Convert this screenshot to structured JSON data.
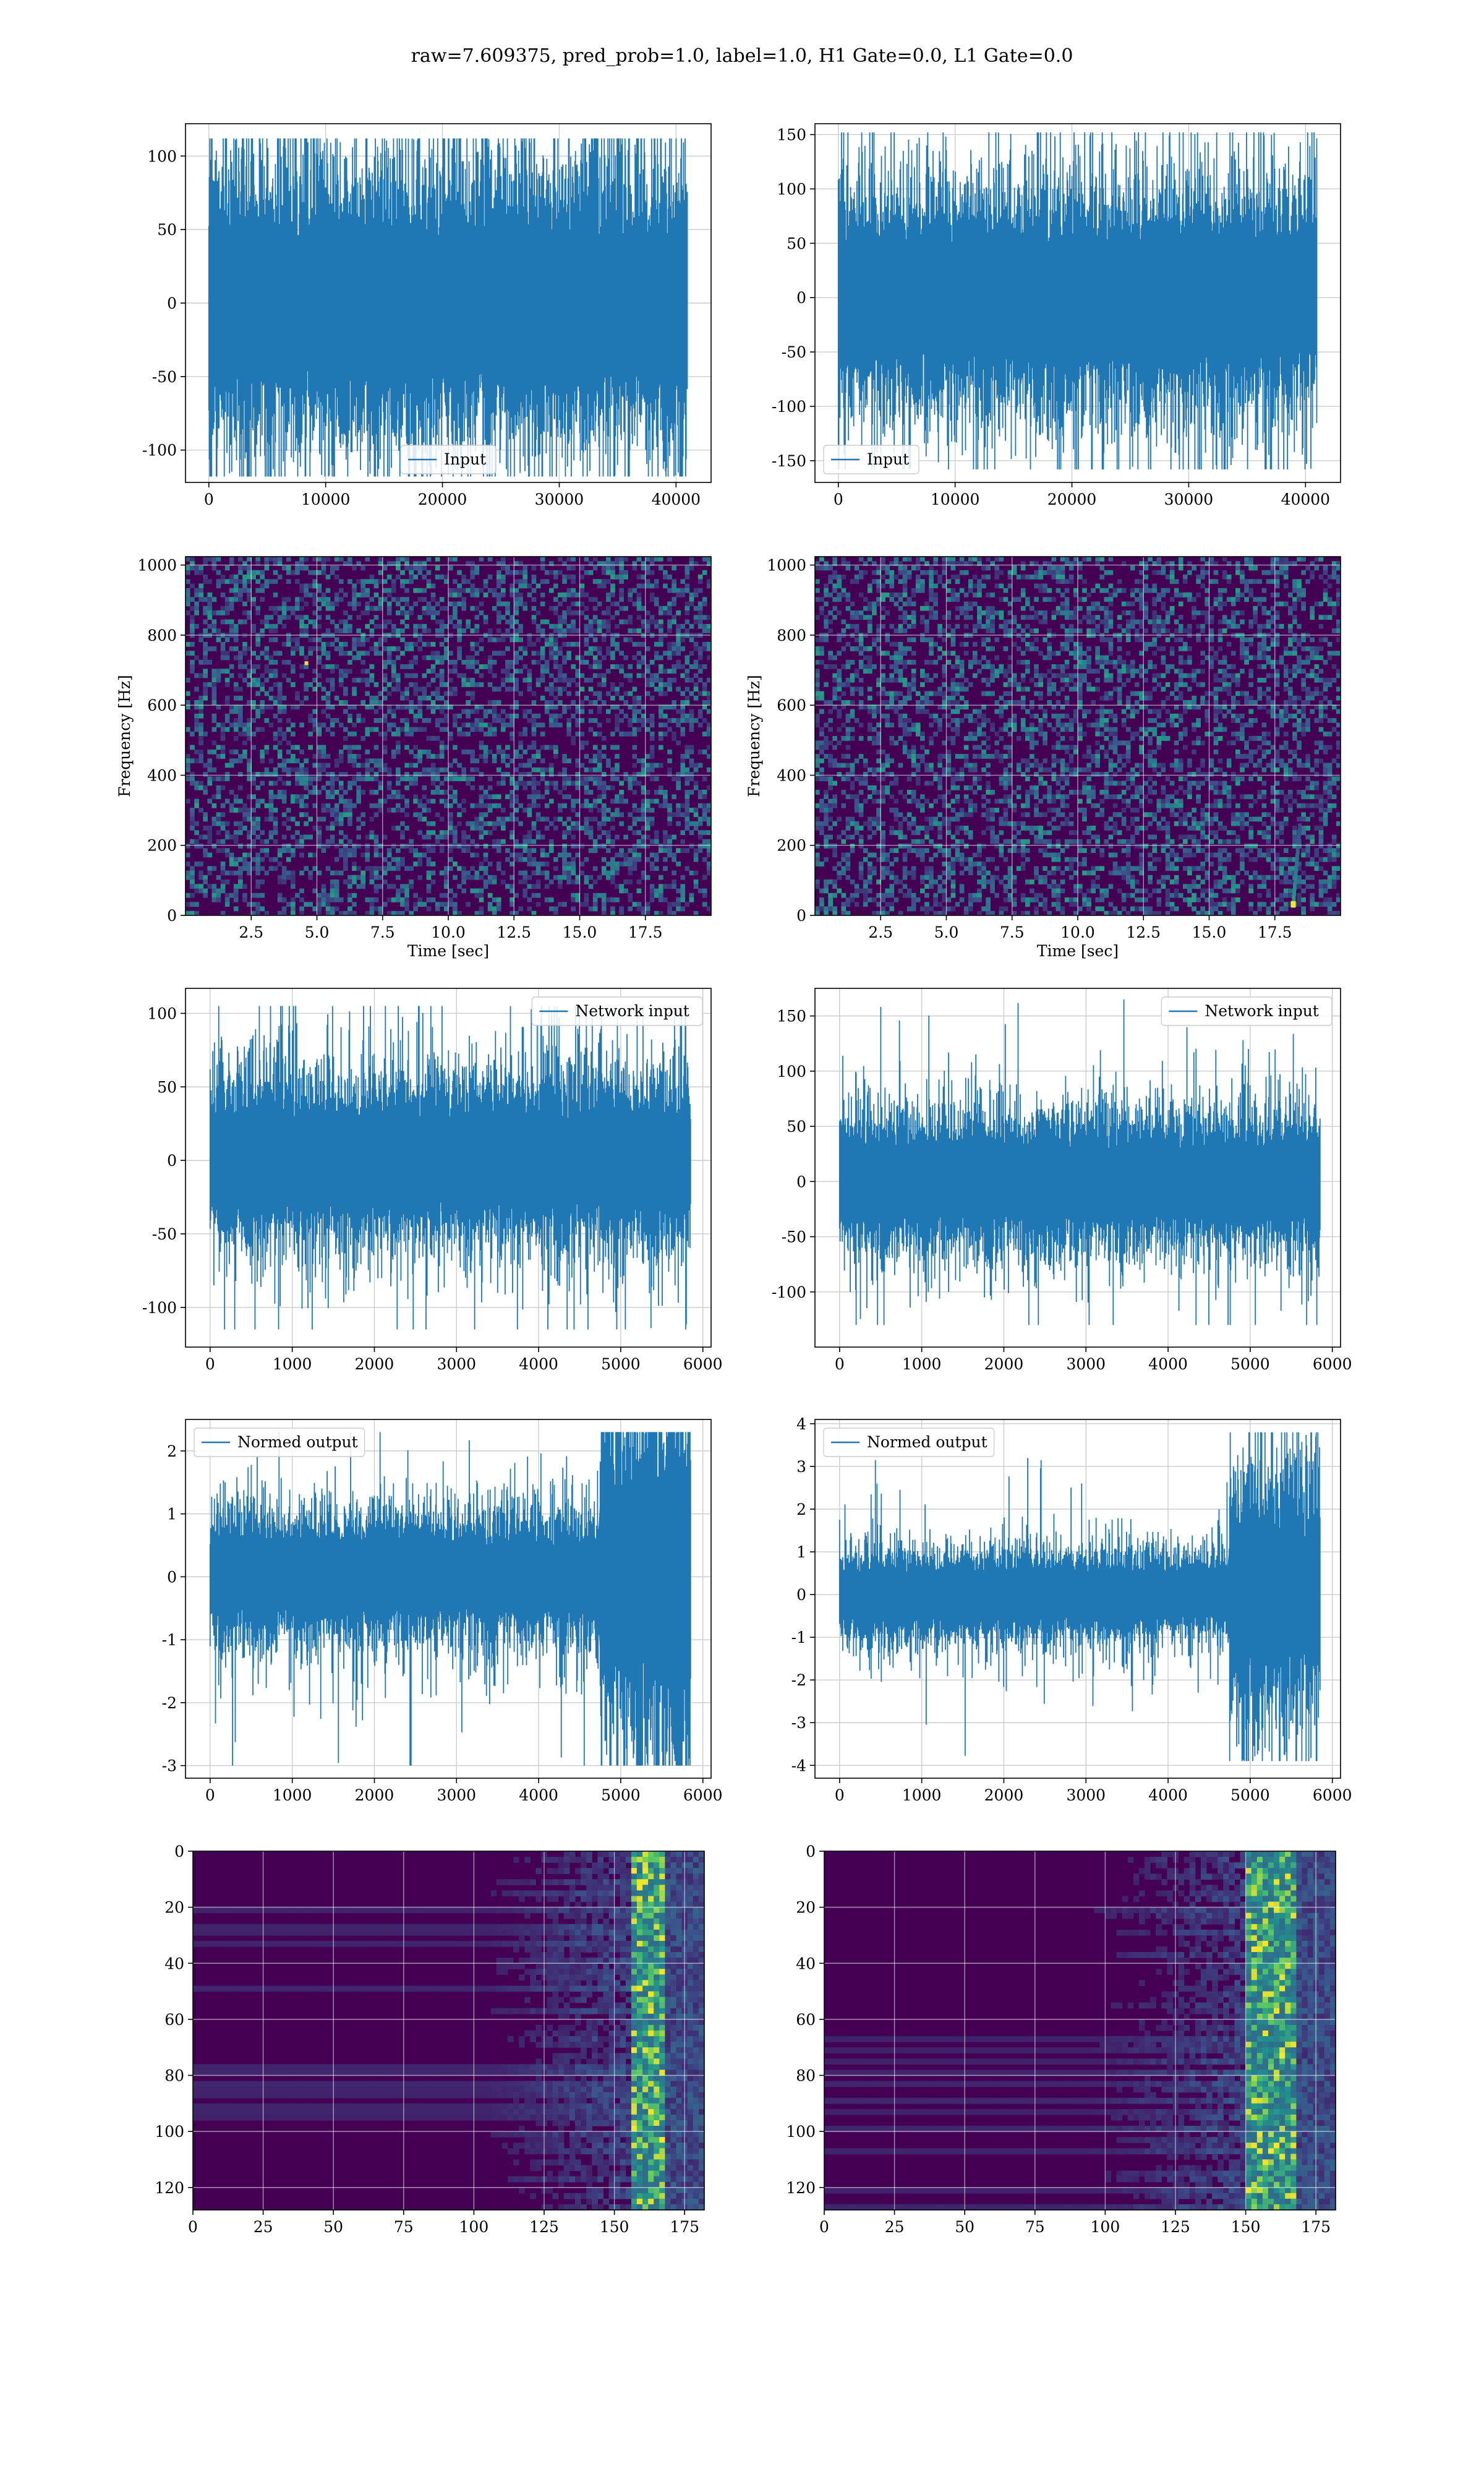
{
  "suptitle": "raw=7.609375, pred_prob=1.0, label=1.0, H1 Gate=0.0, L1 Gate=0.0",
  "colors": {
    "line": "#1f77b4",
    "grid": "#cccccc",
    "viridis_low": "#440154",
    "viridis_mid": "#21918c",
    "viridis_high": "#fde725"
  },
  "chart_data": [
    {
      "id": "input-h1",
      "type": "line",
      "legend": [
        "Input"
      ],
      "legend_loc": "lower center",
      "grid": true,
      "xlim": [
        -2000,
        43000
      ],
      "ylim": [
        -122,
        122
      ],
      "xticks": [
        0,
        10000,
        20000,
        30000,
        40000
      ],
      "yticks": [
        -100,
        -50,
        0,
        50,
        100
      ],
      "series": [
        {
          "name": "Input",
          "n_samples": 40960,
          "band_range": [
            -45,
            45
          ],
          "peak_range": [
            -118,
            112
          ]
        }
      ]
    },
    {
      "id": "input-l1",
      "type": "line",
      "legend": [
        "Input"
      ],
      "legend_loc": "lower left",
      "grid": true,
      "xlim": [
        -2000,
        43000
      ],
      "ylim": [
        -170,
        160
      ],
      "xticks": [
        0,
        10000,
        20000,
        30000,
        40000
      ],
      "yticks": [
        -150,
        -100,
        -50,
        0,
        50,
        100,
        150
      ],
      "series": [
        {
          "name": "Input",
          "n_samples": 40960,
          "band_range": [
            -50,
            50
          ],
          "peak_range": [
            -158,
            152
          ]
        }
      ]
    },
    {
      "id": "spectrogram-h1",
      "type": "heatmap",
      "xlabel": "Time [sec]",
      "ylabel": "Frequency [Hz]",
      "grid": true,
      "xlim": [
        0,
        20
      ],
      "ylim": [
        0,
        1024
      ],
      "xticks": [
        "2.5",
        "5.0",
        "7.5",
        "10.0",
        "12.5",
        "15.0",
        "17.5"
      ],
      "yticks": [
        0,
        200,
        400,
        600,
        800,
        1000
      ],
      "colormap": "viridis",
      "features": {
        "hot_pixel": [
          4.6,
          720
        ],
        "dark_band_hz": 500
      }
    },
    {
      "id": "spectrogram-l1",
      "type": "heatmap",
      "xlabel": "Time [sec]",
      "ylabel": "Frequency [Hz]",
      "grid": true,
      "xlim": [
        0,
        20
      ],
      "ylim": [
        0,
        1024
      ],
      "xticks": [
        "2.5",
        "5.0",
        "7.5",
        "10.0",
        "12.5",
        "15.0",
        "17.5"
      ],
      "yticks": [
        0,
        200,
        400,
        600,
        800,
        1000
      ],
      "colormap": "viridis",
      "features": {
        "chirp_time": 18.2,
        "chirp_freq_range": [
          30,
          250
        ]
      }
    },
    {
      "id": "network-input-h1",
      "type": "line",
      "legend": [
        "Network input"
      ],
      "legend_loc": "upper right",
      "grid": true,
      "xlim": [
        -300,
        6100
      ],
      "ylim": [
        -127,
        117
      ],
      "xticks": [
        0,
        1000,
        2000,
        3000,
        4000,
        5000,
        6000
      ],
      "yticks": [
        -100,
        -50,
        0,
        50,
        100
      ],
      "series": [
        {
          "name": "Network input",
          "n_samples": 5850,
          "band_range": [
            -28,
            28
          ],
          "peak_range": [
            -115,
            105
          ]
        }
      ]
    },
    {
      "id": "network-input-l1",
      "type": "line",
      "legend": [
        "Network input"
      ],
      "legend_loc": "upper right",
      "grid": true,
      "xlim": [
        -300,
        6100
      ],
      "ylim": [
        -150,
        175
      ],
      "xticks": [
        0,
        1000,
        2000,
        3000,
        4000,
        5000,
        6000
      ],
      "yticks": [
        -100,
        -50,
        0,
        50,
        100,
        150
      ],
      "series": [
        {
          "name": "Network input",
          "n_samples": 5850,
          "band_range": [
            -30,
            30
          ],
          "peak_range": [
            -130,
            165
          ]
        }
      ]
    },
    {
      "id": "normed-output-h1",
      "type": "line",
      "legend": [
        "Normed output"
      ],
      "legend_loc": "upper left",
      "grid": true,
      "xlim": [
        -300,
        6100
      ],
      "ylim": [
        -3.2,
        2.5
      ],
      "xticks": [
        0,
        1000,
        2000,
        3000,
        4000,
        5000,
        6000
      ],
      "yticks": [
        -3,
        -2,
        -1,
        0,
        1,
        2
      ],
      "series": [
        {
          "name": "Normed output",
          "n_samples": 5850,
          "band_range": [
            -0.5,
            0.5
          ],
          "peak_range": [
            -3.0,
            2.3
          ],
          "burst_start": 4750
        }
      ]
    },
    {
      "id": "normed-output-l1",
      "type": "line",
      "legend": [
        "Normed output"
      ],
      "legend_loc": "upper left",
      "grid": true,
      "xlim": [
        -300,
        6100
      ],
      "ylim": [
        -4.3,
        4.1
      ],
      "xticks": [
        0,
        1000,
        2000,
        3000,
        4000,
        5000,
        6000
      ],
      "yticks": [
        -4,
        -3,
        -2,
        -1,
        0,
        1,
        2,
        3,
        4
      ],
      "series": [
        {
          "name": "Normed output",
          "n_samples": 5850,
          "band_range": [
            -0.5,
            0.5
          ],
          "peak_range": [
            -3.9,
            3.8
          ],
          "burst_start": 4750
        }
      ]
    },
    {
      "id": "feature-map-h1",
      "type": "heatmap",
      "grid": true,
      "xlim": [
        0,
        182
      ],
      "ylim": [
        128,
        0
      ],
      "xticks": [
        0,
        25,
        50,
        75,
        100,
        125,
        150,
        175
      ],
      "yticks": [
        0,
        20,
        40,
        60,
        80,
        100,
        120
      ],
      "colormap": "viridis",
      "features": {
        "active_from": 105,
        "bright_from": 155,
        "bright_to": 168
      }
    },
    {
      "id": "feature-map-l1",
      "type": "heatmap",
      "grid": true,
      "xlim": [
        0,
        182
      ],
      "ylim": [
        128,
        0
      ],
      "xticks": [
        0,
        25,
        50,
        75,
        100,
        125,
        150,
        175
      ],
      "yticks": [
        0,
        20,
        40,
        60,
        80,
        100,
        120
      ],
      "colormap": "viridis",
      "features": {
        "active_from": 95,
        "bright_from": 150,
        "bright_to": 168
      }
    }
  ]
}
